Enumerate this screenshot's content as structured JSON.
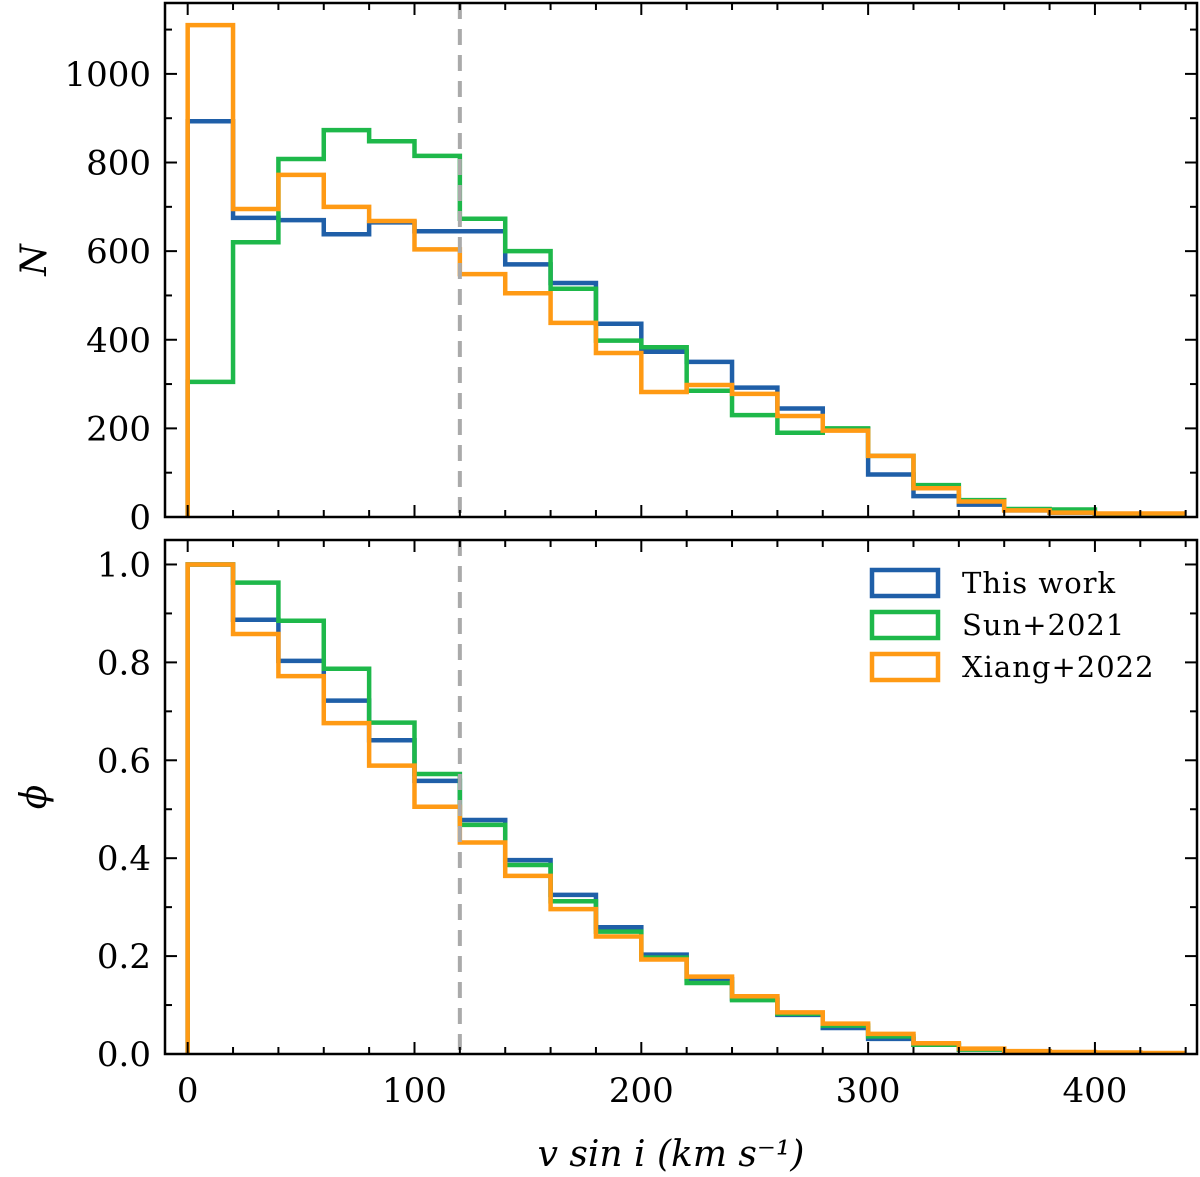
{
  "chart_data": [
    {
      "type": "step",
      "panel": "top",
      "ylabel": "N",
      "xlim": [
        -10,
        445
      ],
      "ylim": [
        0,
        1160
      ],
      "yticks": [
        0,
        200,
        400,
        600,
        800,
        1000
      ],
      "ytick_labels": [
        "0",
        "200",
        "400",
        "600",
        "800",
        "1000"
      ],
      "show_xtick_labels": false,
      "bin_edges": [
        0,
        20,
        40,
        60,
        80,
        100,
        120,
        140,
        160,
        180,
        200,
        220,
        240,
        260,
        280,
        300,
        320,
        340,
        360,
        380,
        400,
        420,
        440
      ],
      "series": [
        {
          "name": "This work",
          "color": "#1f5fa8",
          "values": [
            893,
            675,
            670,
            638,
            665,
            645,
            645,
            570,
            528,
            436,
            373,
            350,
            292,
            245,
            198,
            96,
            47,
            28,
            15,
            10,
            5,
            3
          ]
        },
        {
          "name": "Sun+2021",
          "color": "#1eb84a",
          "values": [
            305,
            620,
            808,
            873,
            848,
            815,
            673,
            600,
            515,
            398,
            383,
            285,
            230,
            190,
            200,
            138,
            72,
            38,
            18,
            17,
            5,
            3
          ]
        },
        {
          "name": "Xiang+2022",
          "color": "#ff9a14",
          "values": [
            1110,
            695,
            772,
            700,
            668,
            604,
            548,
            505,
            438,
            370,
            282,
            298,
            278,
            228,
            195,
            138,
            65,
            35,
            15,
            10,
            8,
            8
          ]
        }
      ]
    },
    {
      "type": "step",
      "panel": "bottom",
      "xlabel": "v sin i  (km s⁻¹)",
      "ylabel": "ϕ",
      "xlim": [
        -10,
        445
      ],
      "ylim": [
        0,
        1.05
      ],
      "xticks": [
        0,
        100,
        200,
        300,
        400
      ],
      "xtick_labels": [
        "0",
        "100",
        "200",
        "300",
        "400"
      ],
      "yticks": [
        0,
        0.2,
        0.4,
        0.6,
        0.8,
        1.0
      ],
      "ytick_labels": [
        "0.0",
        "0.2",
        "0.4",
        "0.6",
        "0.8",
        "1.0"
      ],
      "bin_edges": [
        0,
        20,
        40,
        60,
        80,
        100,
        120,
        140,
        160,
        180,
        200,
        220,
        240,
        260,
        280,
        300,
        320,
        340,
        360,
        380,
        400,
        420,
        440
      ],
      "series": [
        {
          "name": "This work",
          "color": "#1f5fa8",
          "values": [
            1.0,
            0.887,
            0.803,
            0.722,
            0.641,
            0.558,
            0.478,
            0.396,
            0.325,
            0.259,
            0.203,
            0.153,
            0.113,
            0.08,
            0.053,
            0.031,
            0.019,
            0.01,
            0.005,
            0.003,
            0.002,
            0.001
          ]
        },
        {
          "name": "Sun+2021",
          "color": "#1eb84a",
          "values": [
            1.0,
            0.963,
            0.885,
            0.787,
            0.677,
            0.572,
            0.468,
            0.386,
            0.312,
            0.25,
            0.197,
            0.145,
            0.11,
            0.082,
            0.058,
            0.036,
            0.019,
            0.009,
            0.005,
            0.003,
            0.002,
            0.001
          ]
        },
        {
          "name": "Xiang+2022",
          "color": "#ff9a14",
          "values": [
            1.0,
            0.858,
            0.772,
            0.676,
            0.589,
            0.505,
            0.432,
            0.364,
            0.296,
            0.24,
            0.193,
            0.158,
            0.118,
            0.085,
            0.062,
            0.041,
            0.022,
            0.011,
            0.006,
            0.004,
            0.003,
            0.002
          ]
        }
      ],
      "legend": {
        "location": "top-right",
        "entries": [
          "This work",
          "Sun+2021",
          "Xiang+2022"
        ]
      }
    }
  ],
  "reference_line": {
    "x": 120,
    "color": "#aaaaaa",
    "style": "dashed"
  }
}
